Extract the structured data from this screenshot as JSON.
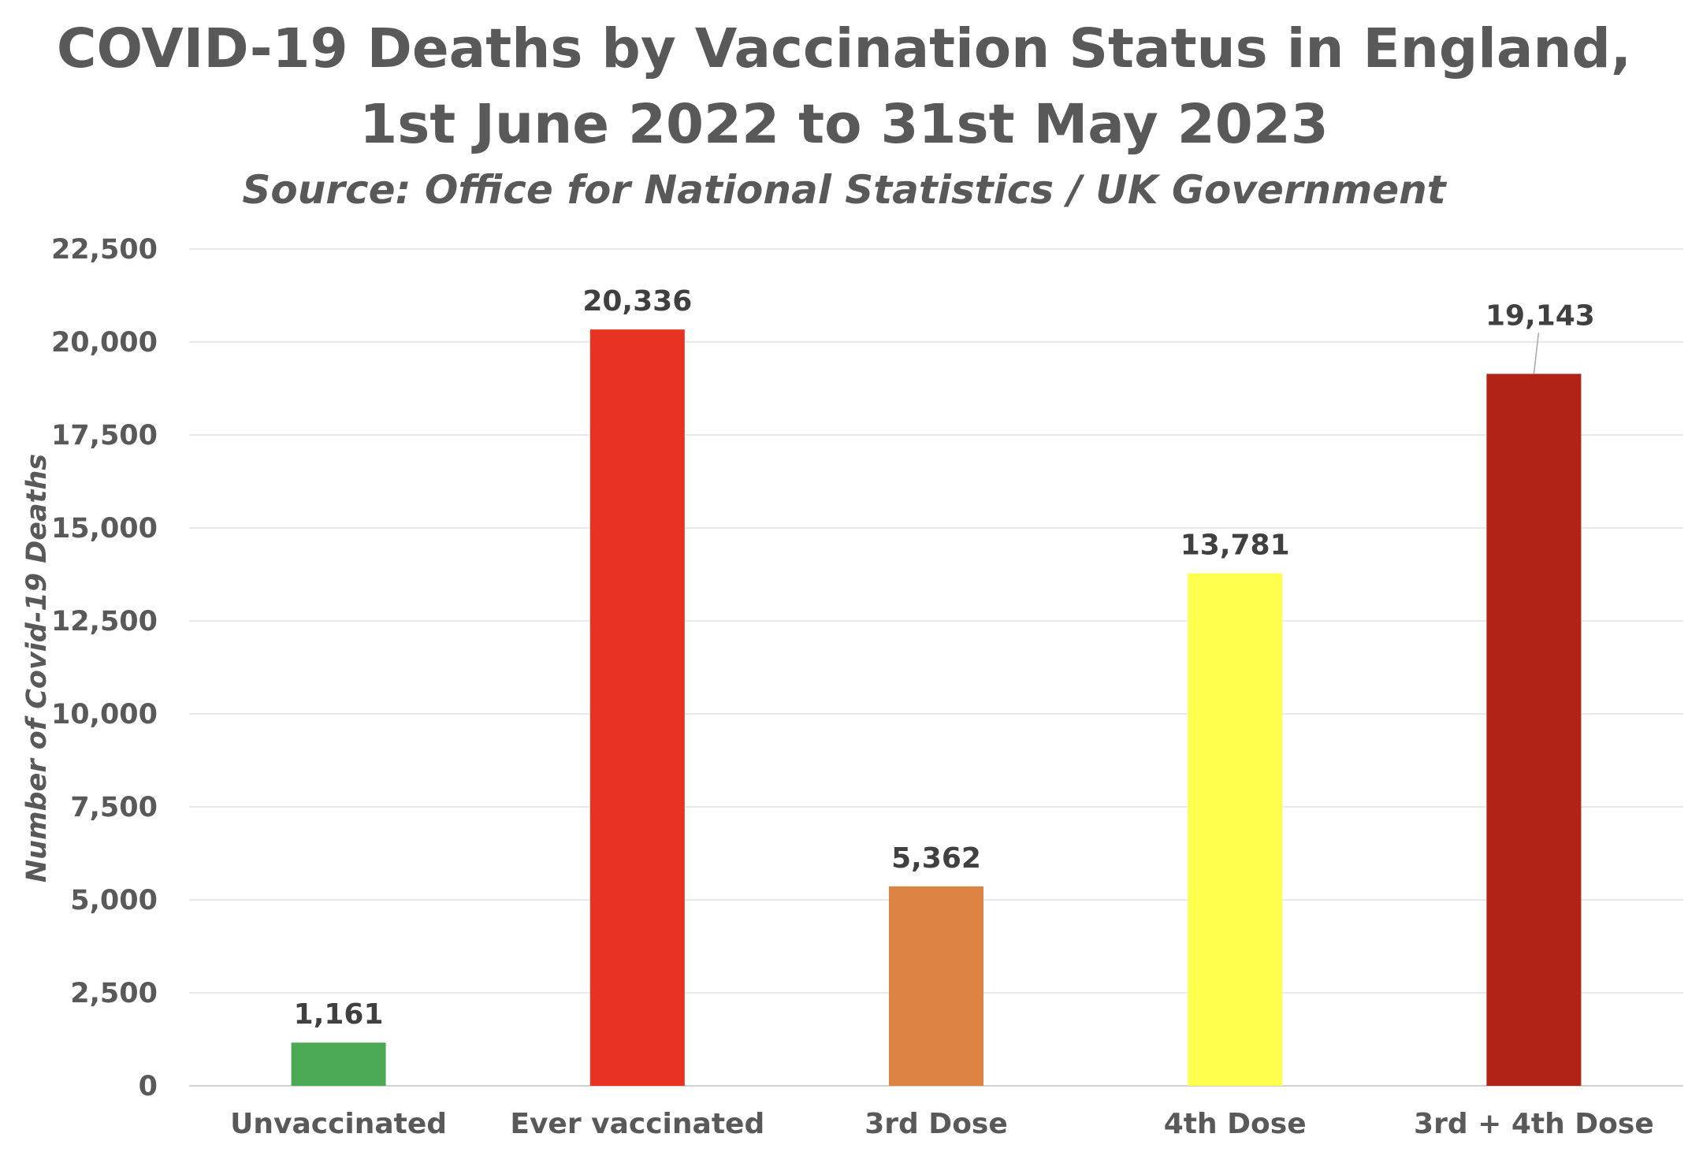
{
  "chart_data": {
    "type": "bar",
    "title_lines": [
      "COVID-19 Deaths by Vaccination Status in England,",
      "1st June 2022 to 31st May 2023"
    ],
    "subtitle": "Source: Office for National Statistics / UK Government",
    "xlabel": "",
    "ylabel": "Number of Covid-19 Deaths",
    "categories": [
      "Unvaccinated",
      "Ever vaccinated",
      "3rd Dose",
      "4th Dose",
      "3rd + 4th Dose"
    ],
    "values": [
      1161,
      20336,
      5362,
      13781,
      19143
    ],
    "value_labels": [
      "1,161",
      "20,336",
      "5,362",
      "13,781",
      "19,143"
    ],
    "colors": [
      "#4caa57",
      "#e83323",
      "#dc8242",
      "#ffff4d",
      "#b02316"
    ],
    "ylim": [
      0,
      22500
    ],
    "yticks": [
      0,
      2500,
      5000,
      7500,
      10000,
      12500,
      15000,
      17500,
      20000,
      22500
    ],
    "ytick_labels": [
      "0",
      "2,500",
      "5,000",
      "7,500",
      "10,000",
      "12,500",
      "15,000",
      "17,500",
      "20,000",
      "22,500"
    ],
    "grid": true,
    "legend": "none"
  }
}
